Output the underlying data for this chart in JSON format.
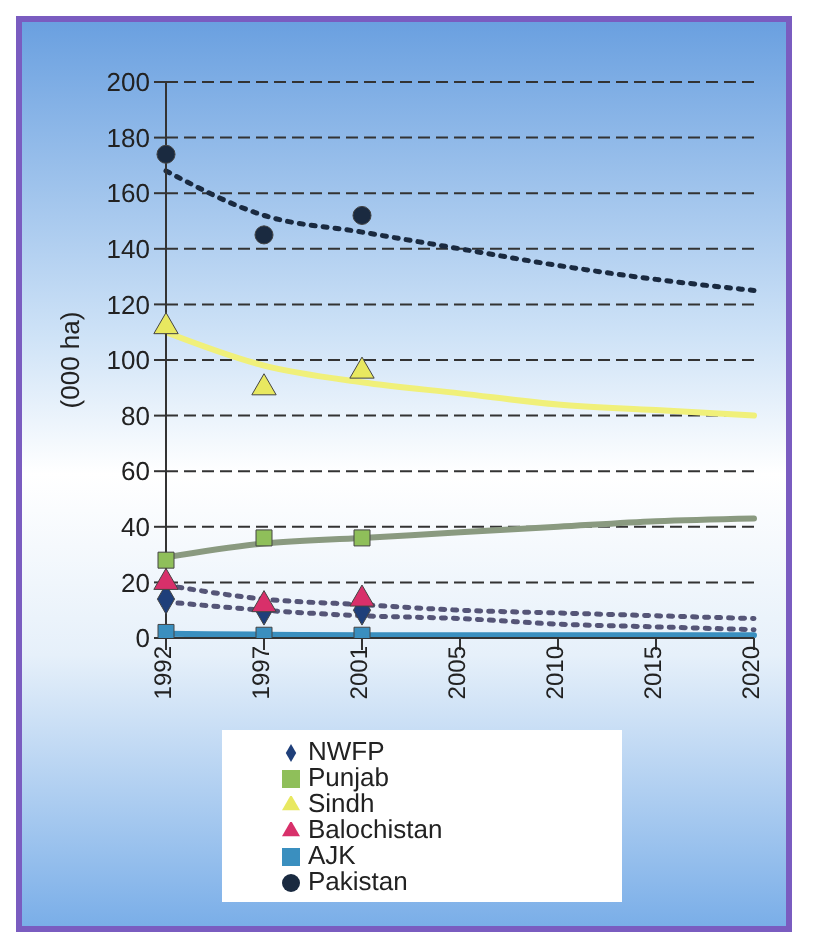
{
  "chart_data": {
    "type": "scatter",
    "ylabel": "(000 ha)",
    "categories": [
      "1992",
      "1997",
      "2001",
      "2005",
      "2010",
      "2015",
      "2020"
    ],
    "ylim": [
      0,
      200
    ],
    "yticks": [
      0,
      20,
      40,
      60,
      80,
      100,
      120,
      140,
      160,
      180,
      200
    ],
    "grid": "y",
    "legend": "bottom",
    "series": [
      {
        "name": "NWFP",
        "marker": "diamond",
        "color": "#1f3f7a",
        "values": [
          14,
          10,
          10,
          null,
          null,
          null,
          null
        ]
      },
      {
        "name": "Punjab",
        "marker": "square",
        "color": "#8fbf5a",
        "values": [
          28,
          36,
          36,
          null,
          null,
          null,
          null
        ]
      },
      {
        "name": "Sindh",
        "marker": "triangle",
        "color": "#e8e860",
        "values": [
          112,
          90,
          96,
          null,
          null,
          null,
          null
        ]
      },
      {
        "name": "Balochistan",
        "marker": "triangle",
        "color": "#d8306a",
        "values": [
          20,
          12,
          14,
          null,
          null,
          null,
          null
        ]
      },
      {
        "name": "AJK",
        "marker": "square",
        "color": "#3a8fbf",
        "values": [
          2,
          1,
          1,
          null,
          null,
          null,
          null
        ]
      },
      {
        "name": "Pakistan",
        "marker": "circle",
        "color": "#1a2a40",
        "values": [
          174,
          145,
          152,
          null,
          null,
          null,
          null
        ]
      },
      {
        "type": "line",
        "marker": "none",
        "line_style": "dotted",
        "color": "#555577",
        "values": [
          13,
          10,
          8,
          7,
          5,
          4,
          3
        ]
      },
      {
        "type": "line",
        "marker": "none",
        "line_style": "solid",
        "color": "#8a9a80",
        "values": [
          29,
          34,
          36,
          38,
          40,
          42,
          43
        ]
      },
      {
        "type": "line",
        "marker": "none",
        "line_style": "solid",
        "color": "#f0f07a",
        "values": [
          110,
          98,
          92,
          88,
          84,
          82,
          80
        ]
      },
      {
        "type": "line",
        "marker": "none",
        "line_style": "dotted",
        "color": "#555577",
        "values": [
          19,
          14,
          12,
          10,
          9,
          8,
          7
        ]
      },
      {
        "type": "line",
        "marker": "none",
        "line_style": "solid",
        "color": "#3a8fbf",
        "values": [
          1.5,
          1.2,
          1,
          1,
          1,
          1,
          1
        ]
      },
      {
        "type": "line",
        "marker": "none",
        "line_style": "dotted",
        "color": "#1a2a40",
        "values": [
          168,
          152,
          146,
          140,
          134,
          129,
          125
        ]
      }
    ]
  }
}
